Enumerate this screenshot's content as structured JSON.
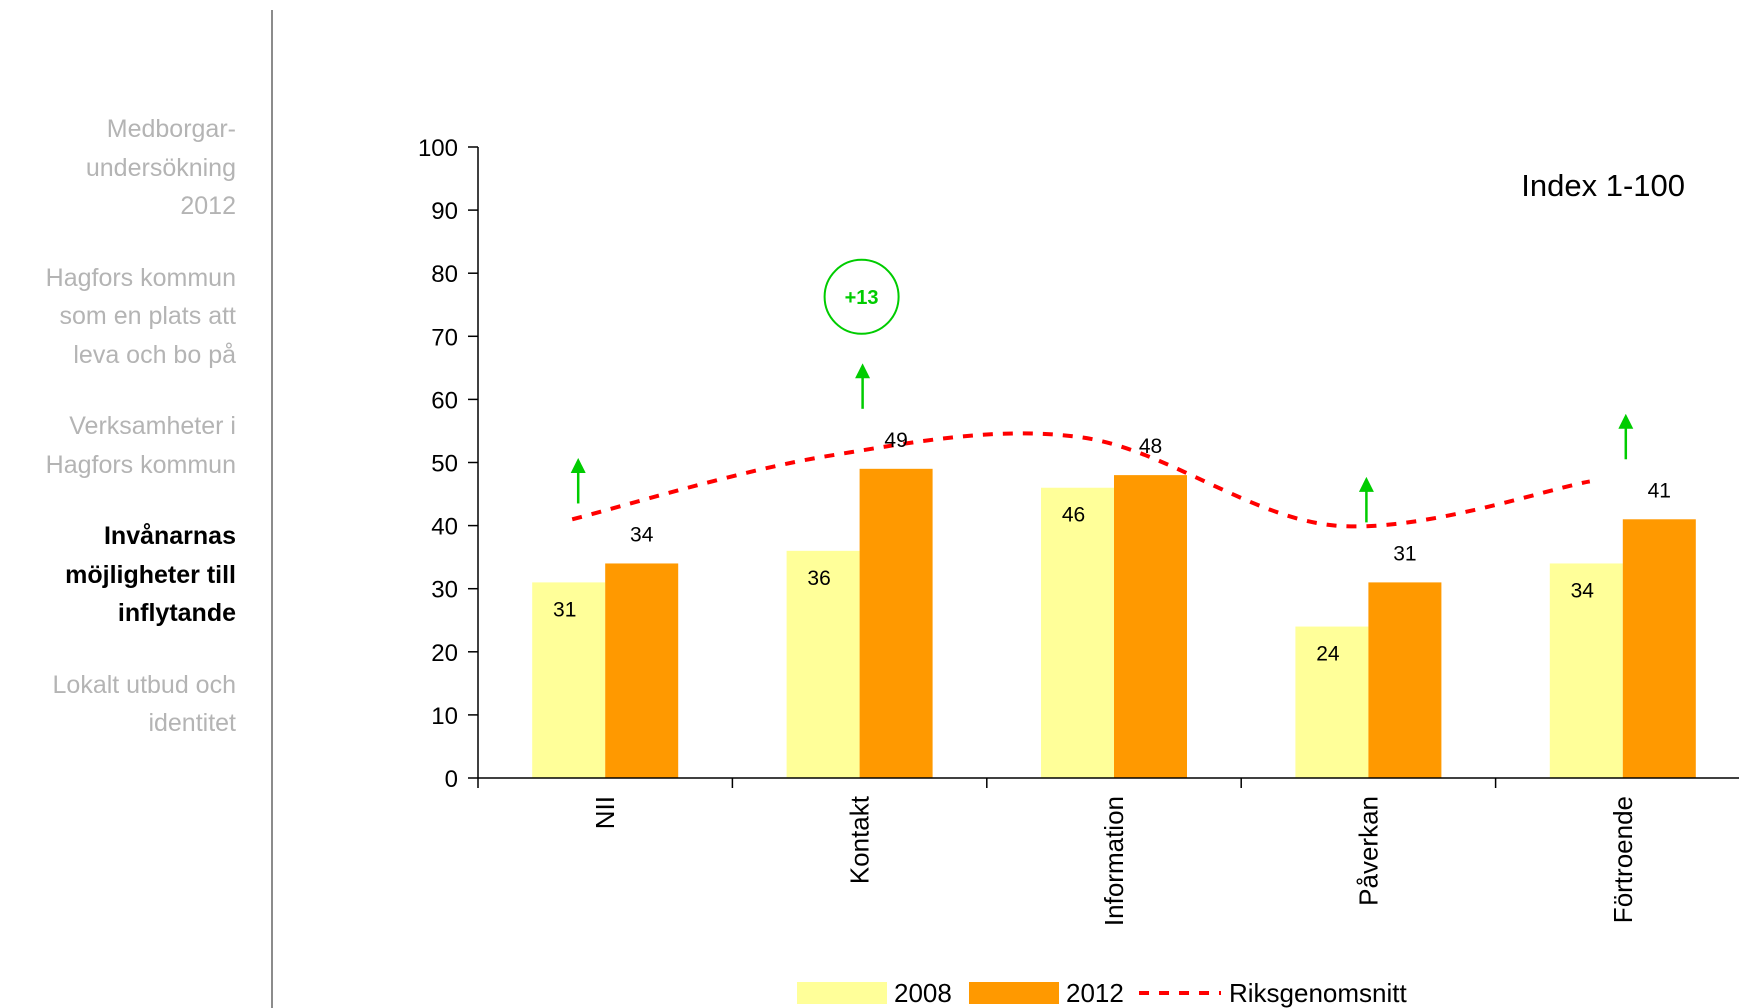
{
  "sidebar": {
    "items": [
      {
        "label": "Medborgar-\nundersökning\n2012",
        "active": false
      },
      {
        "label": "Hagfors kommun\nsom en plats att\nleva och bo på",
        "active": false
      },
      {
        "label": "Verksamheter i\nHagfors kommun",
        "active": false
      },
      {
        "label": "Invånarnas\nmöjligheter till\ninflytande",
        "active": true
      },
      {
        "label": "Lokalt utbud och\nidentitet",
        "active": false
      }
    ]
  },
  "chart_data": {
    "type": "bar",
    "title": "Index 1-100",
    "categories": [
      "NII",
      "Kontakt",
      "Information",
      "Påverkan",
      "Förtroende"
    ],
    "series": [
      {
        "name": "2008",
        "values": [
          31,
          36,
          46,
          24,
          34
        ],
        "color": "#ffff99"
      },
      {
        "name": "2012",
        "values": [
          34,
          49,
          48,
          31,
          41
        ],
        "color": "#ff9900"
      }
    ],
    "line_series": {
      "name": "Riksgenomsnitt",
      "values": [
        41,
        51,
        54,
        40,
        47
      ],
      "color": "#ff0000",
      "style": "dashed"
    },
    "ylim": [
      0,
      100
    ],
    "yticks": [
      0,
      10,
      20,
      30,
      40,
      50,
      60,
      70,
      80,
      90,
      100
    ],
    "legend_placement": "bottom",
    "increase_arrows": [
      "NII",
      "Kontakt",
      "Påverkan",
      "Förtroende"
    ],
    "highlight": {
      "category": "Kontakt",
      "text": "+13",
      "color": "#00cc00"
    },
    "arrow_color": "#00cc00",
    "grid": false
  }
}
